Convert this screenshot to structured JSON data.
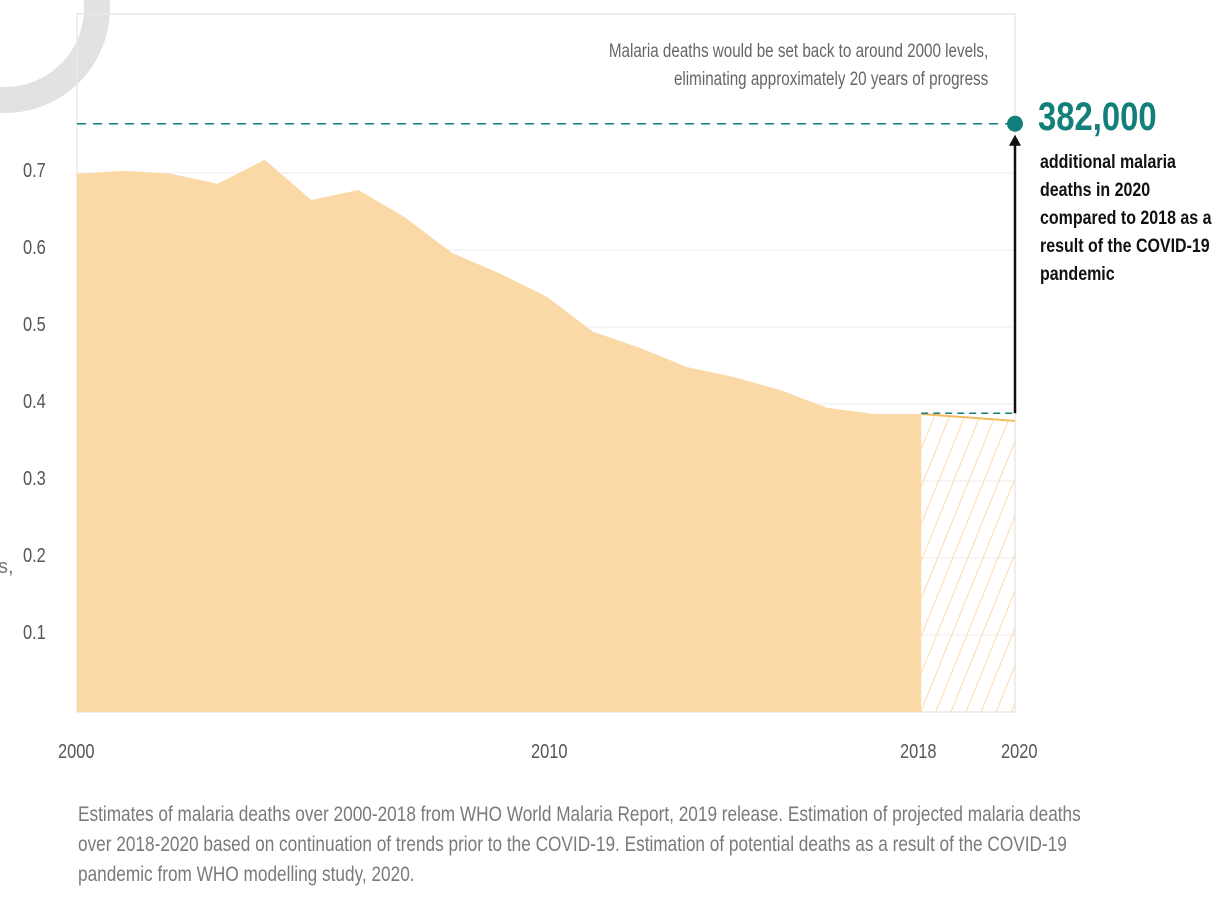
{
  "chart_data": {
    "type": "area",
    "title": "",
    "xlabel": "",
    "ylabel": "",
    "ylim": [
      0,
      0.9
    ],
    "xlim": [
      2000,
      2020
    ],
    "x_ticks": [
      "2000",
      "2010",
      "2018",
      "2020"
    ],
    "y_ticks": [
      "0.1",
      "0.2",
      "0.3",
      "0.4",
      "0.5",
      "0.6",
      "0.7"
    ],
    "grid": true,
    "series": [
      {
        "values_x": [
          2000,
          2001,
          2002,
          2003,
          2004,
          2005,
          2006,
          2007,
          2008,
          2009,
          2010,
          2011,
          2012,
          2013,
          2014,
          2015,
          2016,
          2017,
          2018
        ],
        "values_y": [
          0.699,
          0.703,
          0.699,
          0.686,
          0.717,
          0.665,
          0.678,
          0.642,
          0.596,
          0.57,
          0.54,
          0.494,
          0.473,
          0.448,
          0.435,
          0.418,
          0.395,
          0.387,
          0.387
        ],
        "color": "#fad9a7"
      },
      {
        "values_x": [
          2018,
          2020
        ],
        "values_y": [
          0.387,
          0.378
        ],
        "color": "#f5b85a",
        "style": "hatched"
      }
    ],
    "reference_lines": [
      {
        "y": 0.764,
        "color": "#137f7b",
        "style": "dashed"
      },
      {
        "y": 0.388,
        "color": "#137f7b",
        "style": "dashed"
      }
    ],
    "annotation": "Malaria deaths would be set back to around 2000 levels, eliminating approximately 20 years of progress",
    "callout": {
      "value": "382,000",
      "text": "additional malaria deaths in 2020 compared to 2018 as a result of the COVID-19 pandemic",
      "x": 2020,
      "y": 0.764
    }
  },
  "labels": {
    "annotation_line1": "Malaria deaths would be set back to around 2000 levels,",
    "annotation_line2": "eliminating approximately 20 years of progress",
    "callout_number": "382,000",
    "callout_text": "additional malaria deaths in 2020 compared to 2018 as a result of the COVID-19 pandemic",
    "y_edge": "s,",
    "caption": "Estimates of malaria deaths over 2000-2018 from WHO World Malaria Report, 2019 release. Estimation of projected malaria deaths over 2018-2020 based on continuation of trends prior to the COVID-19. Estimation of potential deaths as a result of the COVID-19 pandemic from WHO modelling study, 2020."
  },
  "colors": {
    "area": "#fad9a7",
    "projection": "#f5b85a",
    "accent": "#137f7b",
    "grid": "#eeeeee",
    "watermark": "#d9d9d9"
  }
}
